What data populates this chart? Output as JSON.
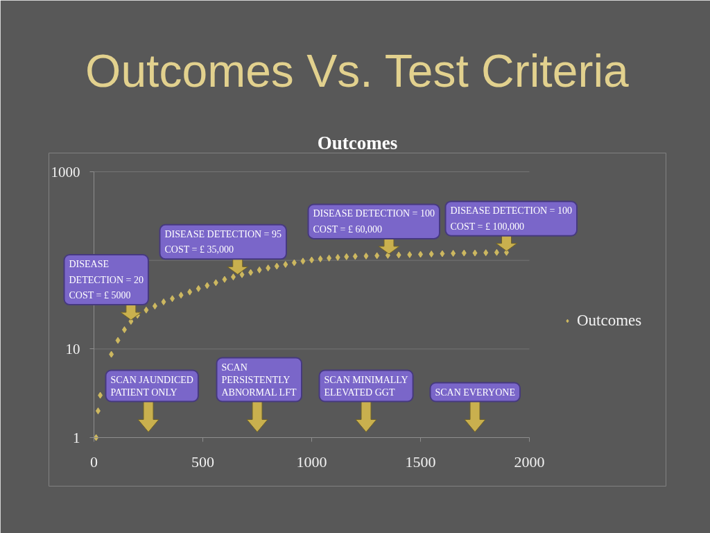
{
  "chart_data": {
    "type": "scatter",
    "title": "Outcomes Vs. Test Criteria",
    "subtitle": "Outcomes",
    "xlim": [
      0,
      2000
    ],
    "xticks": [
      0,
      500,
      1000,
      1500,
      2000
    ],
    "ylim": [
      1,
      1000
    ],
    "yticks": [
      1,
      10,
      {
        "value": 100,
        "label": null
      },
      1000
    ],
    "log": true,
    "grid": "y",
    "legend": "right",
    "marker": "diamond",
    "series": [
      {
        "name": "Outcomes",
        "color": "#cdb860",
        "x": [
          10,
          19,
          29,
          80,
          110,
          140,
          170,
          200,
          240,
          280,
          320,
          360,
          400,
          440,
          480,
          520,
          560,
          600,
          640,
          680,
          720,
          760,
          800,
          840,
          880,
          920,
          960,
          1000,
          1040,
          1080,
          1120,
          1160,
          1200,
          1250,
          1300,
          1350,
          1400,
          1450,
          1500,
          1550,
          1600,
          1650,
          1700,
          1750,
          1800,
          1850,
          1895
        ],
        "values": [
          1,
          2,
          3,
          8.7,
          12.5,
          16.5,
          20.5,
          24,
          27.5,
          30.5,
          34,
          37,
          40.5,
          44,
          48,
          52,
          56,
          61,
          65,
          69,
          73,
          78,
          82,
          86,
          90,
          94,
          98,
          101,
          104,
          106,
          108,
          110,
          111,
          112,
          113,
          114,
          115,
          116,
          117,
          118,
          119,
          120,
          121,
          121,
          122,
          123,
          123
        ]
      }
    ],
    "annotations": [
      {
        "text": "DISEASE DETECTION = 20\nCOST = £ 5000",
        "x": 170,
        "y": 20.5
      },
      {
        "text": "DISEASE DETECTION = 95\nCOST = £ 35,000",
        "x": 660,
        "y": 67
      },
      {
        "text": "DISEASE DETECTION = 100\nCOST = £ 60,000",
        "x": 1355,
        "y": 114
      },
      {
        "text": "DISEASE DETECTION = 100\nCOST = £ 100,000",
        "x": 1895,
        "y": 123
      },
      "SCAN JAUNDICED\nPATIENT ONLY",
      "SCAN\nPERSISTENTLY\nABNORMAL LFT",
      "SCAN MINIMALLY\nELEVATED GGT",
      "SCAN EVERYONE"
    ]
  }
}
